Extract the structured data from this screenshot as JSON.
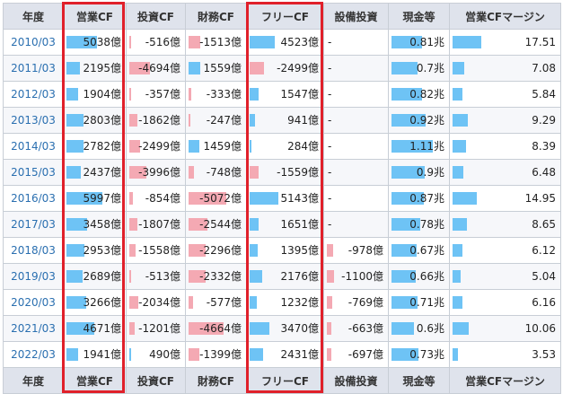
{
  "columns": [
    "年度",
    "営業CF",
    "投資CF",
    "財務CF",
    "フリーCF",
    "設備投資",
    "現金等",
    "営業CFマージン"
  ],
  "rows": [
    {
      "year": "2010/03",
      "op": "5038億",
      "inv": "-516億",
      "fin": "-1513億",
      "free": "4523億",
      "capex": "-",
      "cash": "0.81兆",
      "margin": "17.51"
    },
    {
      "year": "2011/03",
      "op": "2195億",
      "inv": "-4694億",
      "fin": "1559億",
      "free": "-2499億",
      "capex": "-",
      "cash": "0.7兆",
      "margin": "7.08"
    },
    {
      "year": "2012/03",
      "op": "1904億",
      "inv": "-357億",
      "fin": "-333億",
      "free": "1547億",
      "capex": "-",
      "cash": "0.82兆",
      "margin": "5.84"
    },
    {
      "year": "2013/03",
      "op": "2803億",
      "inv": "-1862億",
      "fin": "-247億",
      "free": "941億",
      "capex": "-",
      "cash": "0.92兆",
      "margin": "9.29"
    },
    {
      "year": "2014/03",
      "op": "2782億",
      "inv": "-2499億",
      "fin": "1459億",
      "free": "284億",
      "capex": "-",
      "cash": "1.11兆",
      "margin": "8.39"
    },
    {
      "year": "2015/03",
      "op": "2437億",
      "inv": "-3996億",
      "fin": "-748億",
      "free": "-1559億",
      "capex": "-",
      "cash": "0.9兆",
      "margin": "6.48"
    },
    {
      "year": "2016/03",
      "op": "5997億",
      "inv": "-854億",
      "fin": "-5072億",
      "free": "5143億",
      "capex": "-",
      "cash": "0.87兆",
      "margin": "14.95"
    },
    {
      "year": "2017/03",
      "op": "3458億",
      "inv": "-1807億",
      "fin": "-2544億",
      "free": "1651億",
      "capex": "-",
      "cash": "0.78兆",
      "margin": "8.65"
    },
    {
      "year": "2018/03",
      "op": "2953億",
      "inv": "-1558億",
      "fin": "-2296億",
      "free": "1395億",
      "capex": "-978億",
      "cash": "0.67兆",
      "margin": "6.12"
    },
    {
      "year": "2019/03",
      "op": "2689億",
      "inv": "-513億",
      "fin": "-2332億",
      "free": "2176億",
      "capex": "-1100億",
      "cash": "0.66兆",
      "margin": "5.04"
    },
    {
      "year": "2020/03",
      "op": "3266億",
      "inv": "-2034億",
      "fin": "-577億",
      "free": "1232億",
      "capex": "-769億",
      "cash": "0.71兆",
      "margin": "6.16"
    },
    {
      "year": "2021/03",
      "op": "4671億",
      "inv": "-1201億",
      "fin": "-4664億",
      "free": "3470億",
      "capex": "-663億",
      "cash": "0.6兆",
      "margin": "10.06"
    },
    {
      "year": "2022/03",
      "op": "1941億",
      "inv": "490億",
      "fin": "-1399億",
      "free": "2431億",
      "capex": "-697億",
      "cash": "0.73兆",
      "margin": "3.53"
    }
  ],
  "colors": {
    "positive_bar": "#6ec3f5",
    "negative_bar": "#f4a9b3",
    "highlight": "#e0202a",
    "header_bg": "#dfe3ec",
    "year_link": "#2a6fb0"
  }
}
